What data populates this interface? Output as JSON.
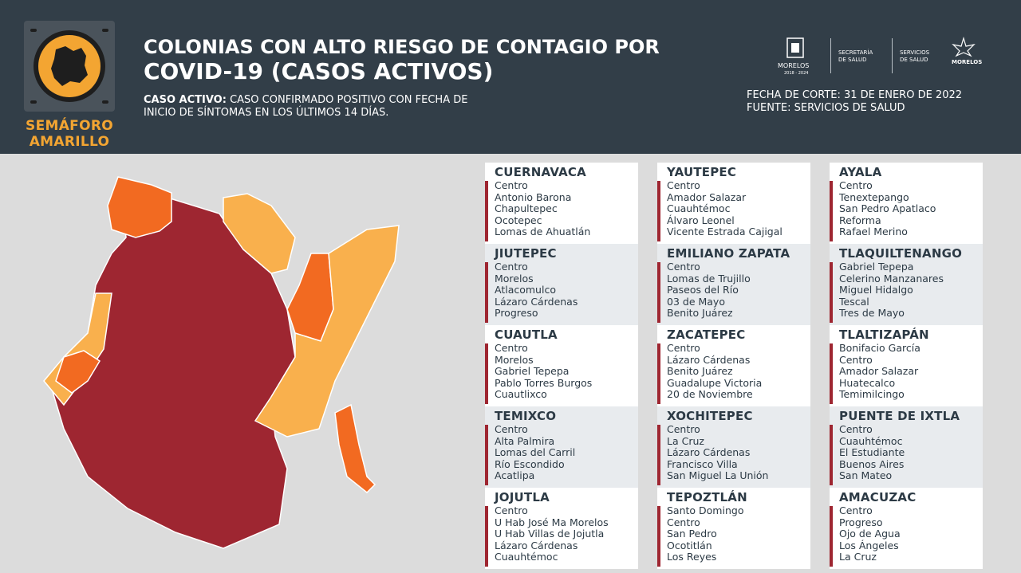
{
  "badge": {
    "label_line1": "SEMÁFORO",
    "label_line2": "AMARILLO",
    "icon": "morelos-state-icon"
  },
  "title": {
    "line1": "COLONIAS CON ALTO RIESGO DE CONTAGIO POR",
    "line2": "COVID-19 (CASOS ACTIVOS)"
  },
  "definition": {
    "label": "CASO ACTIVO:",
    "text_line1": " CASO CONFIRMADO POSITIVO CON FECHA DE",
    "text_line2": "INICIO DE SÍNTOMAS EN LOS ÚLTIMOS 14 DÍAS."
  },
  "logos": {
    "gov": "MORELOS",
    "gov_years": "2018 - 2024",
    "secretaria_line1": "SECRETARÍA",
    "secretaria_line2": "DE SALUD",
    "servicios_line1": "SERVICIOS",
    "servicios_line2": "DE SALUD",
    "brand": "MORELOS"
  },
  "info": {
    "fecha": "FECHA DE CORTE: 31 DE ENERO DE 2022",
    "fuente": "FUENTE: SERVICIOS DE SALUD"
  },
  "colors": {
    "header_bg": "#323e48",
    "dark_red": "#9e2631",
    "orange": "#f26a21",
    "light_orange": "#f9b04d",
    "badge_orange": "#f3a532"
  },
  "municipios": [
    {
      "name": "CUERNAVACA",
      "colonias": [
        "Centro",
        "Antonio Barona",
        "Chapultepec",
        "Ocotepec",
        "Lomas de Ahuatlán"
      ]
    },
    {
      "name": "YAUTEPEC",
      "colonias": [
        "Centro",
        "Amador Salazar",
        "Cuauhtémoc",
        "Álvaro Leonel",
        "Vicente Estrada Cajigal"
      ]
    },
    {
      "name": "AYALA",
      "colonias": [
        "Centro",
        "Tenextepango",
        "San Pedro Apatlaco",
        "Reforma",
        "Rafael Merino"
      ]
    },
    {
      "name": "JIUTEPEC",
      "colonias": [
        "Centro",
        "Morelos",
        "Atlacomulco",
        "Lázaro Cárdenas",
        "Progreso"
      ]
    },
    {
      "name": "EMILIANO ZAPATA",
      "colonias": [
        "Centro",
        "Lomas de Trujillo",
        "Paseos del Río",
        "03 de Mayo",
        "Benito Juárez"
      ]
    },
    {
      "name": "TLAQUILTENANGO",
      "colonias": [
        "Gabriel Tepepa",
        "Celerino Manzanares",
        "Miguel Hidalgo",
        "Tescal",
        "Tres de Mayo"
      ]
    },
    {
      "name": "CUAUTLA",
      "colonias": [
        "Centro",
        "Morelos",
        "Gabriel Tepepa",
        "Pablo Torres Burgos",
        "Cuautlixco"
      ]
    },
    {
      "name": "ZACATEPEC",
      "colonias": [
        "Centro",
        "Lázaro Cárdenas",
        "Benito Juárez",
        "Guadalupe Victoria",
        "20 de Noviembre"
      ]
    },
    {
      "name": "TLALTIZAPÁN",
      "colonias": [
        "Bonifacio García",
        "Centro",
        "Amador Salazar",
        "Huatecalco",
        "Temimilcingo"
      ]
    },
    {
      "name": "TEMIXCO",
      "colonias": [
        "Centro",
        "Alta Palmira",
        "Lomas del Carril",
        "Río Escondido",
        "Acatlipa"
      ]
    },
    {
      "name": "XOCHITEPEC",
      "colonias": [
        "Centro",
        "La Cruz",
        "Lázaro Cárdenas",
        "Francisco Villa",
        "San Miguel La Unión"
      ]
    },
    {
      "name": "PUENTE DE IXTLA",
      "colonias": [
        "Centro",
        "Cuauhtémoc",
        "El Estudiante",
        "Buenos Aires",
        "San Mateo"
      ]
    },
    {
      "name": "JOJUTLA",
      "colonias": [
        "Centro",
        "U Hab José Ma Morelos",
        "U Hab Villas de Jojutla",
        "Lázaro Cárdenas",
        "Cuauhtémoc"
      ]
    },
    {
      "name": "TEPOZTLÁN",
      "colonias": [
        "Santo Domingo",
        "Centro",
        "San Pedro",
        "Ocotitlán",
        "Los Reyes"
      ]
    },
    {
      "name": "AMACUZAC",
      "colonias": [
        "Centro",
        "Progreso",
        "Ojo de Agua",
        "Los Ángeles",
        "La Cruz"
      ]
    }
  ]
}
